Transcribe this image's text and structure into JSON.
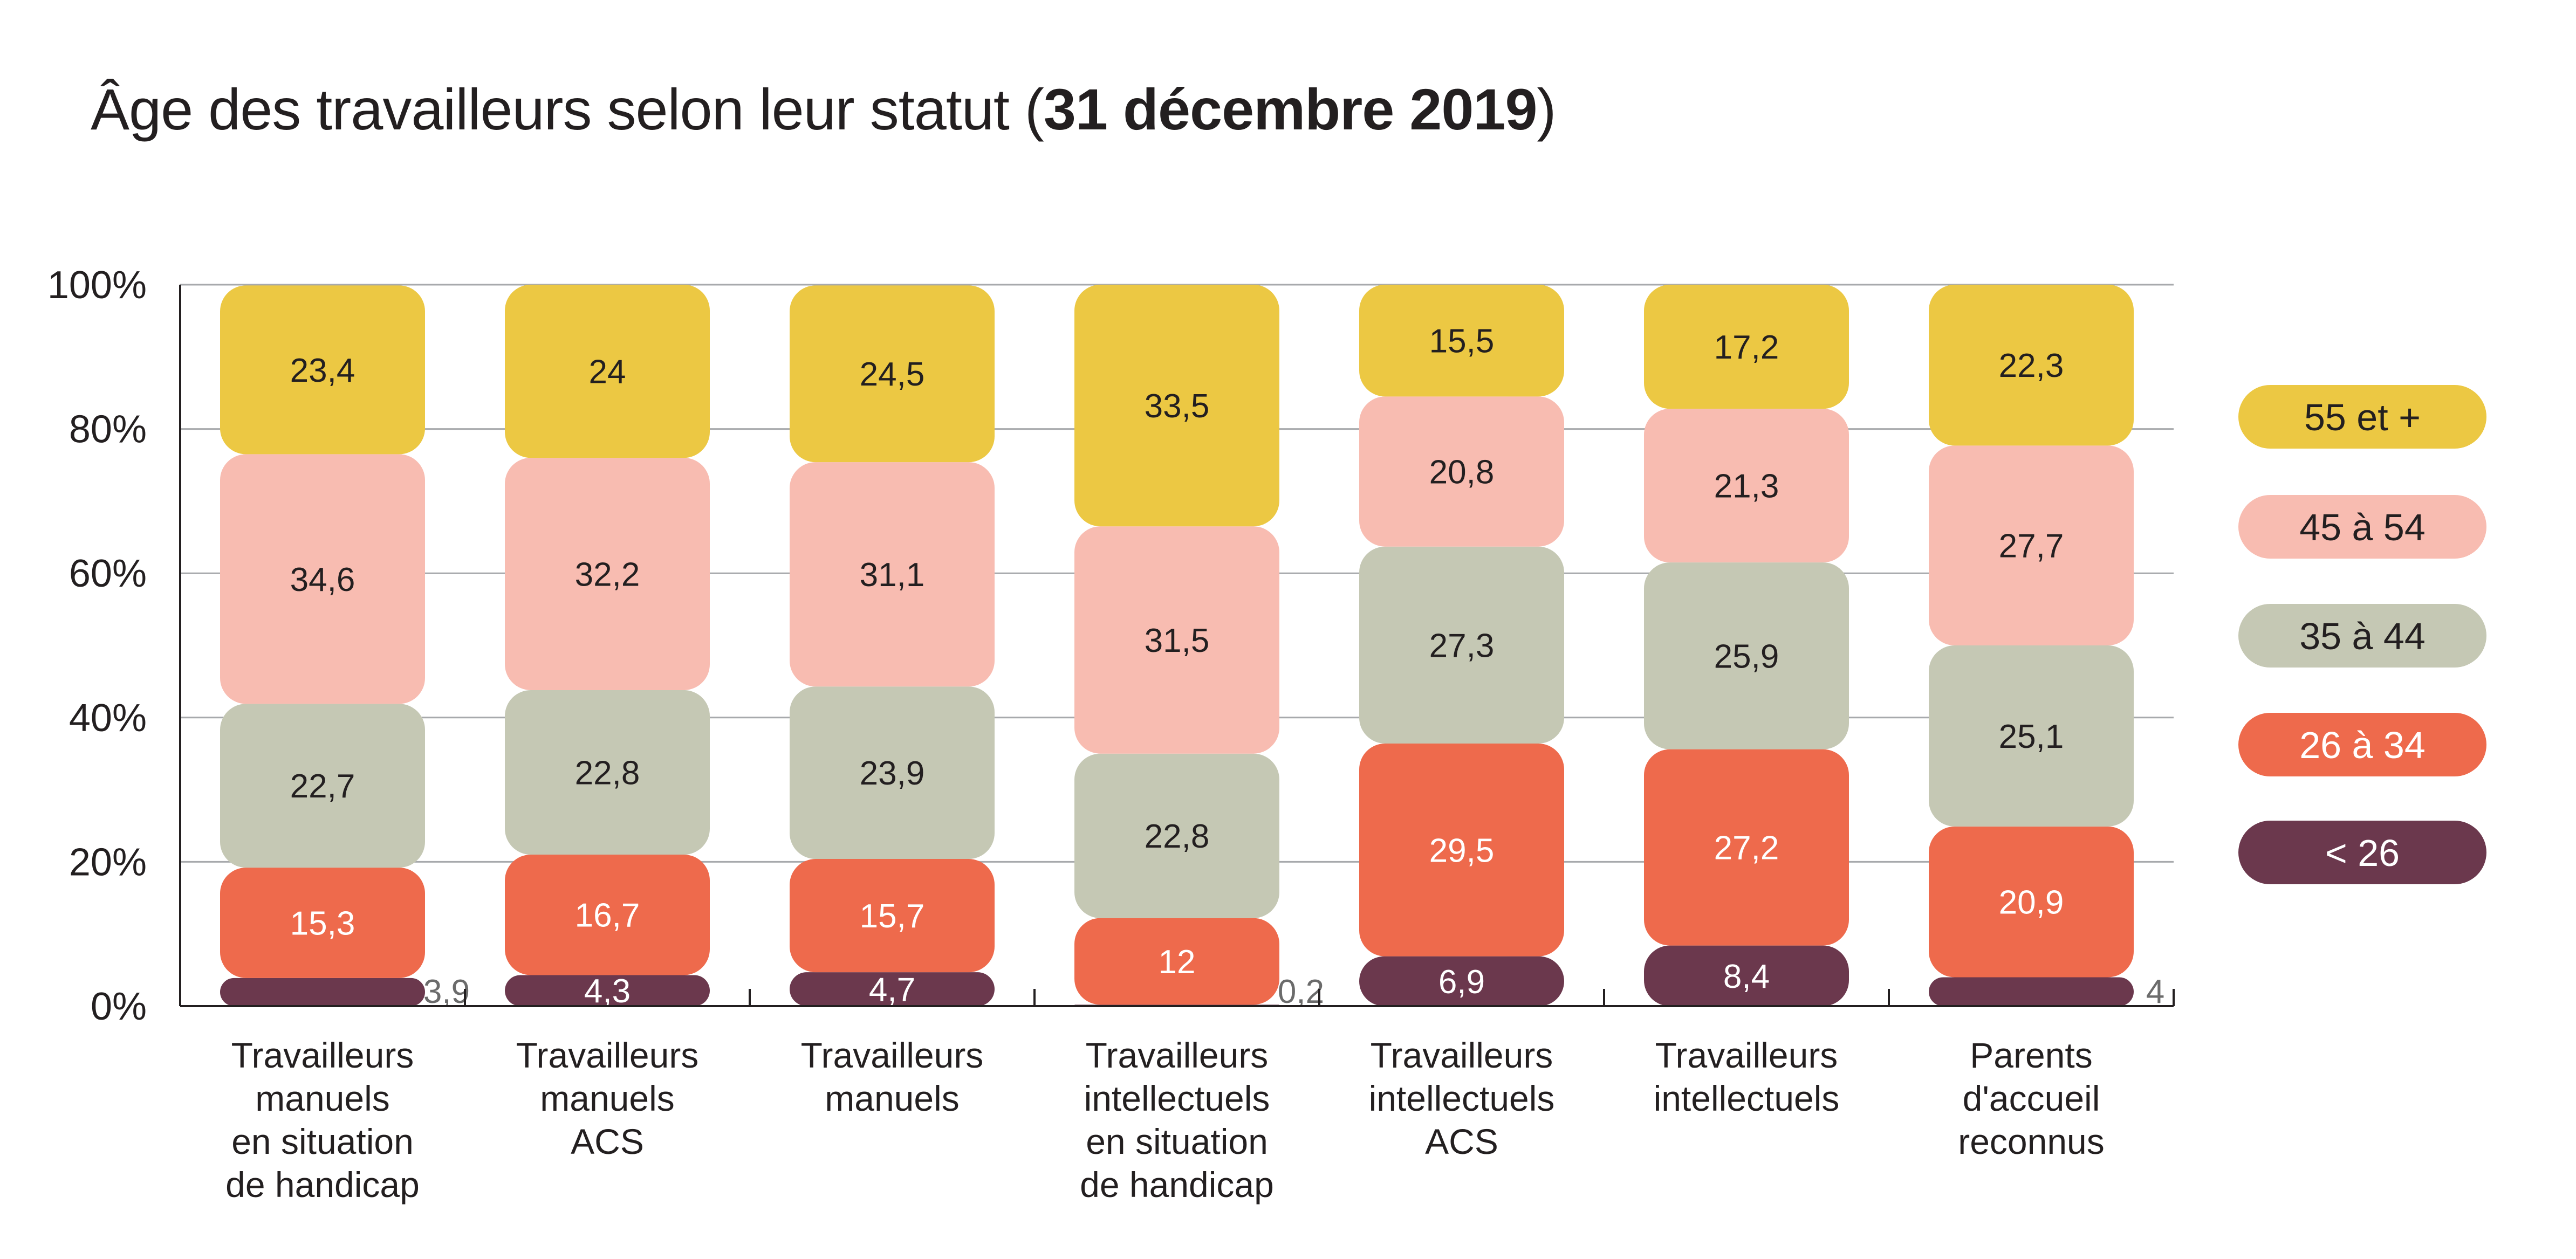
{
  "title": {
    "prefix": "Âge des travailleurs selon leur statut (",
    "bold": "31 décembre 2019",
    "suffix": ")"
  },
  "colors": {
    "55 et +": "#ecc843",
    "45 à 54": "#f8bcb1",
    "35 à 44": "#c5c8b4",
    "26 à 34": "#ee6a4c",
    "< 26": "#6b384d"
  },
  "chart_data": {
    "type": "bar",
    "stacked": true,
    "title": "Âge des travailleurs selon leur statut (31 décembre 2019)",
    "ylim": [
      0,
      100
    ],
    "yticks": [
      "0%",
      "20%",
      "40%",
      "60%",
      "80%",
      "100%"
    ],
    "grid": true,
    "legend_position": "right",
    "categories": [
      [
        "Travailleurs",
        "manuels",
        "en situation",
        "de handicap"
      ],
      [
        "Travailleurs",
        "manuels",
        "ACS"
      ],
      [
        "Travailleurs",
        "manuels"
      ],
      [
        "Travailleurs",
        "intellectuels",
        "en situation",
        "de handicap"
      ],
      [
        "Travailleurs",
        "intellectuels",
        "ACS"
      ],
      [
        "Travailleurs",
        "intellectuels"
      ],
      [
        "Parents",
        "d'accueil",
        "reconnus"
      ]
    ],
    "series": [
      {
        "name": "< 26",
        "values": [
          3.9,
          4.3,
          4.7,
          0.2,
          6.9,
          8.4,
          4
        ],
        "labels": [
          "3,9",
          "4,3",
          "4,7",
          "0,2",
          "6,9",
          "8,4",
          "4"
        ]
      },
      {
        "name": "26 à 34",
        "values": [
          15.3,
          16.7,
          15.7,
          12,
          29.5,
          27.2,
          20.9
        ],
        "labels": [
          "15,3",
          "16,7",
          "15,7",
          "12",
          "29,5",
          "27,2",
          "20,9"
        ]
      },
      {
        "name": "35 à 44",
        "values": [
          22.7,
          22.8,
          23.9,
          22.8,
          27.3,
          25.9,
          25.1
        ],
        "labels": [
          "22,7",
          "22,8",
          "23,9",
          "22,8",
          "27,3",
          "25,9",
          "25,1"
        ]
      },
      {
        "name": "45 à 54",
        "values": [
          34.6,
          32.2,
          31.1,
          31.5,
          20.8,
          21.3,
          27.7
        ],
        "labels": [
          "34,6",
          "32,2",
          "31,1",
          "31,5",
          "20,8",
          "21,3",
          "27,7"
        ]
      },
      {
        "name": "55 et +",
        "values": [
          23.4,
          24,
          24.5,
          33.5,
          15.5,
          17.2,
          22.3
        ],
        "labels": [
          "23,4",
          "24",
          "24,5",
          "33,5",
          "15,5",
          "17,2",
          "22,3"
        ]
      }
    ],
    "legend_order": [
      "55 et +",
      "45 à 54",
      "35 à 44",
      "26 à 34",
      "< 26"
    ]
  }
}
